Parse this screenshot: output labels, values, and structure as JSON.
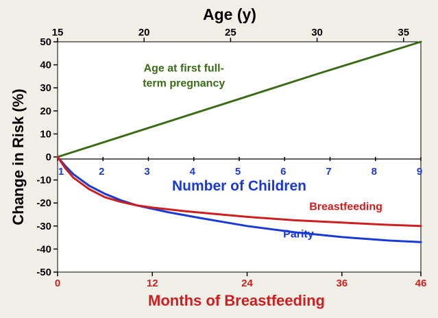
{
  "chart_data": {
    "type": "line",
    "ylabel": "Change in Risk (%)",
    "ylim": [
      -50,
      50
    ],
    "yticks": [
      -50,
      -40,
      -30,
      -20,
      -10,
      0,
      10,
      20,
      30,
      40,
      50
    ],
    "axes": {
      "age": {
        "label": "Age (y)",
        "range": [
          15,
          36
        ],
        "ticks": [
          15,
          20,
          25,
          30,
          35
        ],
        "color": "#000000"
      },
      "children": {
        "label": "Number of Children",
        "range": [
          1,
          9
        ],
        "ticks": [
          1,
          2,
          3,
          4,
          5,
          6,
          7,
          8,
          9
        ],
        "color": "#1a3ad4"
      },
      "months": {
        "label": "Months of Breastfeeding",
        "range": [
          0,
          46
        ],
        "ticks": [
          0,
          12,
          24,
          36,
          46
        ],
        "color": "#cc1f1f"
      }
    },
    "series": [
      {
        "name": "Age at first full-term pregnancy",
        "label_lines": [
          "Age at first full-",
          "term pregnancy"
        ],
        "axis": "age",
        "color": "#3b6b16",
        "x": [
          15,
          20,
          25,
          30,
          36
        ],
        "y": [
          0,
          12,
          24,
          36,
          50
        ]
      },
      {
        "name": "Parity",
        "label_lines": [
          "Parity"
        ],
        "axis": "months",
        "color": "#1a3ad4",
        "x": [
          0,
          1,
          2,
          4,
          6,
          8,
          10,
          12,
          14,
          18,
          24,
          30,
          36,
          42,
          46
        ],
        "y": [
          0,
          -4,
          -7.5,
          -12.5,
          -16,
          -18.8,
          -21,
          -22.5,
          -24,
          -26.5,
          -30,
          -32.7,
          -34.8,
          -36.3,
          -37
        ]
      },
      {
        "name": "Breastfeeding",
        "label_lines": [
          "Breastfeeding"
        ],
        "axis": "months",
        "color": "#cc1f1f",
        "x": [
          0,
          1,
          2,
          4,
          6,
          8,
          10,
          12,
          16,
          20,
          24,
          30,
          36,
          42,
          46
        ],
        "y": [
          0,
          -5,
          -9,
          -14,
          -17.5,
          -19.5,
          -21,
          -22,
          -23.5,
          -24.8,
          -26,
          -27.5,
          -28.5,
          -29.5,
          -30
        ]
      }
    ]
  }
}
